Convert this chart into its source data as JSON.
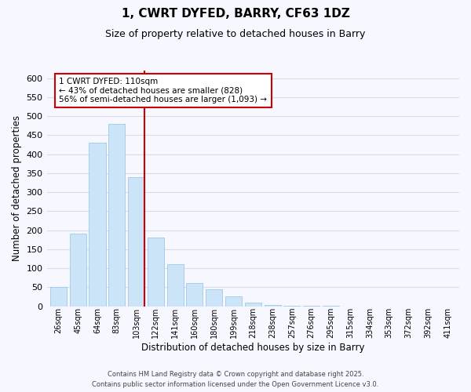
{
  "title": "1, CWRT DYFED, BARRY, CF63 1DZ",
  "subtitle": "Size of property relative to detached houses in Barry",
  "xlabel": "Distribution of detached houses by size in Barry",
  "ylabel": "Number of detached properties",
  "bar_labels": [
    "26sqm",
    "45sqm",
    "64sqm",
    "83sqm",
    "103sqm",
    "122sqm",
    "141sqm",
    "160sqm",
    "180sqm",
    "199sqm",
    "218sqm",
    "238sqm",
    "257sqm",
    "276sqm",
    "295sqm",
    "315sqm",
    "334sqm",
    "353sqm",
    "372sqm",
    "392sqm",
    "411sqm"
  ],
  "bar_values": [
    50,
    190,
    430,
    480,
    340,
    180,
    110,
    60,
    45,
    25,
    10,
    3,
    2,
    1,
    1,
    0,
    0,
    0,
    0,
    0,
    0
  ],
  "bar_color": "#cce4f7",
  "bar_edge_color": "#a0c8e8",
  "vline_index": 4,
  "vline_color": "#cc0000",
  "annotation_title": "1 CWRT DYFED: 110sqm",
  "annotation_line1": "← 43% of detached houses are smaller (828)",
  "annotation_line2": "56% of semi-detached houses are larger (1,093) →",
  "annotation_box_color": "#ffffff",
  "annotation_box_edge_color": "#cc0000",
  "ylim": [
    0,
    620
  ],
  "yticks": [
    0,
    50,
    100,
    150,
    200,
    250,
    300,
    350,
    400,
    450,
    500,
    550,
    600
  ],
  "footer1": "Contains HM Land Registry data © Crown copyright and database right 2025.",
  "footer2": "Contains public sector information licensed under the Open Government Licence v3.0.",
  "bg_color": "#f7f7ff",
  "grid_color": "#d8dce8"
}
